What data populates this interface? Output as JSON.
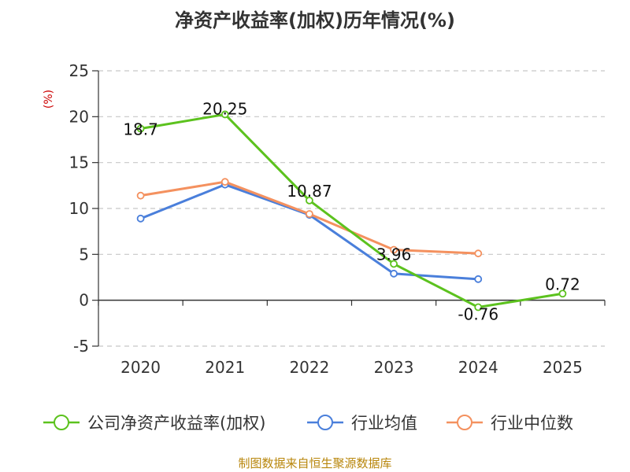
{
  "chart_data": {
    "type": "line",
    "title": "净资产收益率(加权)历年情况(%)",
    "ylabel": "(%)",
    "xlabel": "",
    "categories": [
      "2020",
      "2021",
      "2022",
      "2023",
      "2024",
      "2025"
    ],
    "ylim": [
      -5,
      25
    ],
    "yticks": [
      25,
      20,
      15,
      10,
      5,
      0,
      -5
    ],
    "grid": true,
    "legend_position": "bottom",
    "series": [
      {
        "name": "公司净资产收益率(加权)",
        "color": "#5cc21e",
        "values": [
          18.7,
          20.25,
          10.87,
          3.96,
          -0.76,
          0.72
        ],
        "labels": [
          "18.7",
          "20.25",
          "10.87",
          "3.96",
          "-0.76",
          "0.72"
        ]
      },
      {
        "name": "行业均值",
        "color": "#4a7fdb",
        "values": [
          8.9,
          12.6,
          9.3,
          2.9,
          2.3,
          null
        ]
      },
      {
        "name": "行业中位数",
        "color": "#f4915f",
        "values": [
          11.4,
          12.9,
          9.4,
          5.5,
          5.1,
          null
        ]
      }
    ],
    "source": "制图数据来自恒生聚源数据库"
  }
}
